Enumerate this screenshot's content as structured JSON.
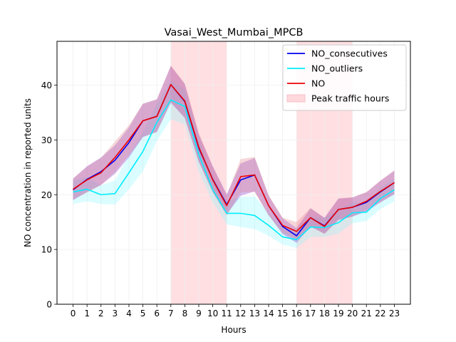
{
  "chart_data": {
    "type": "line",
    "title": "Vasai_West_Mumbai_MPCB",
    "xlabel": "Hours",
    "ylabel": "NO concentration in reported units",
    "x": [
      0,
      1,
      2,
      3,
      4,
      5,
      6,
      7,
      8,
      9,
      10,
      11,
      12,
      13,
      14,
      15,
      16,
      17,
      18,
      19,
      20,
      21,
      22,
      23
    ],
    "xlim": [
      -1.15,
      24.15
    ],
    "ylim": [
      0,
      48
    ],
    "yticks": [
      0,
      10,
      20,
      30,
      40
    ],
    "grid": true,
    "legend_position": "top-right",
    "peak_hours": [
      [
        7,
        11
      ],
      [
        16,
        20
      ]
    ],
    "series": [
      {
        "name": "NO_consecutives",
        "color": "#0000ee",
        "values": [
          20.9,
          22.8,
          24.2,
          26.3,
          29.5,
          33.5,
          34.3,
          40.1,
          37.0,
          28.5,
          22.8,
          18.2,
          22.7,
          23.6,
          18.0,
          14.2,
          12.5,
          15.8,
          14.3,
          17.3,
          17.7,
          18.6,
          20.5,
          22.2
        ],
        "band_low": [
          19.0,
          20.5,
          21.8,
          23.8,
          26.8,
          30.5,
          31.5,
          36.8,
          34.0,
          26.0,
          20.5,
          16.4,
          19.8,
          20.6,
          16.3,
          12.8,
          11.2,
          14.2,
          12.9,
          15.4,
          16.0,
          16.9,
          18.6,
          20.1
        ],
        "band_high": [
          22.9,
          25.2,
          26.8,
          29.0,
          32.3,
          36.6,
          37.4,
          43.5,
          40.2,
          31.0,
          25.2,
          20.1,
          25.7,
          26.7,
          19.8,
          15.7,
          13.9,
          17.5,
          15.8,
          19.3,
          19.5,
          20.4,
          22.5,
          24.4
        ]
      },
      {
        "name": "NO_outliers",
        "color": "#00eeff",
        "values": [
          20.5,
          21.0,
          20.0,
          20.2,
          24.0,
          27.9,
          33.2,
          37.3,
          36.1,
          27.3,
          20.9,
          16.6,
          16.6,
          16.2,
          14.4,
          12.3,
          11.8,
          14.1,
          14.0,
          14.9,
          16.7,
          16.8,
          19.3,
          20.9
        ],
        "band_low": [
          18.3,
          18.8,
          18.3,
          18.2,
          21.0,
          24.3,
          29.8,
          33.8,
          32.8,
          24.3,
          18.6,
          14.6,
          14.1,
          13.7,
          12.5,
          10.9,
          10.3,
          12.3,
          12.3,
          12.9,
          14.8,
          15.2,
          17.4,
          18.8
        ],
        "band_high": [
          22.6,
          23.2,
          21.7,
          22.6,
          27.1,
          31.5,
          36.6,
          40.8,
          39.2,
          30.3,
          23.2,
          18.8,
          19.6,
          19.7,
          16.7,
          14.0,
          13.6,
          16.0,
          15.8,
          17.1,
          18.7,
          18.5,
          21.3,
          23.0
        ]
      },
      {
        "name": "NO",
        "color": "#ee0000",
        "values": [
          21.0,
          22.7,
          24.0,
          26.8,
          30.0,
          33.5,
          34.3,
          40.1,
          37.1,
          28.7,
          22.7,
          18.0,
          23.3,
          23.6,
          18.0,
          14.4,
          13.3,
          15.8,
          14.2,
          17.3,
          17.7,
          18.8,
          20.6,
          22.2
        ],
        "band_low": [
          19.1,
          20.4,
          21.7,
          24.2,
          27.2,
          30.6,
          31.4,
          36.9,
          34.1,
          26.1,
          20.4,
          16.2,
          20.4,
          20.5,
          16.2,
          13.0,
          11.8,
          14.2,
          12.8,
          15.4,
          16.0,
          17.1,
          18.6,
          20.1
        ],
        "band_high": [
          23.0,
          25.1,
          26.7,
          29.7,
          32.7,
          36.6,
          37.4,
          43.6,
          40.3,
          31.3,
          25.1,
          19.8,
          26.5,
          26.9,
          19.9,
          15.8,
          15.0,
          17.6,
          15.7,
          19.3,
          19.5,
          20.5,
          22.6,
          24.4
        ]
      }
    ],
    "legend": [
      {
        "label": "NO_consecutives",
        "kind": "line",
        "color": "#0000ee"
      },
      {
        "label": "NO_outliers",
        "kind": "line",
        "color": "#00eeff"
      },
      {
        "label": "NO",
        "kind": "line",
        "color": "#ee0000"
      },
      {
        "label": "Peak traffic hours",
        "kind": "patch",
        "color": "#ffd8dc"
      }
    ]
  }
}
